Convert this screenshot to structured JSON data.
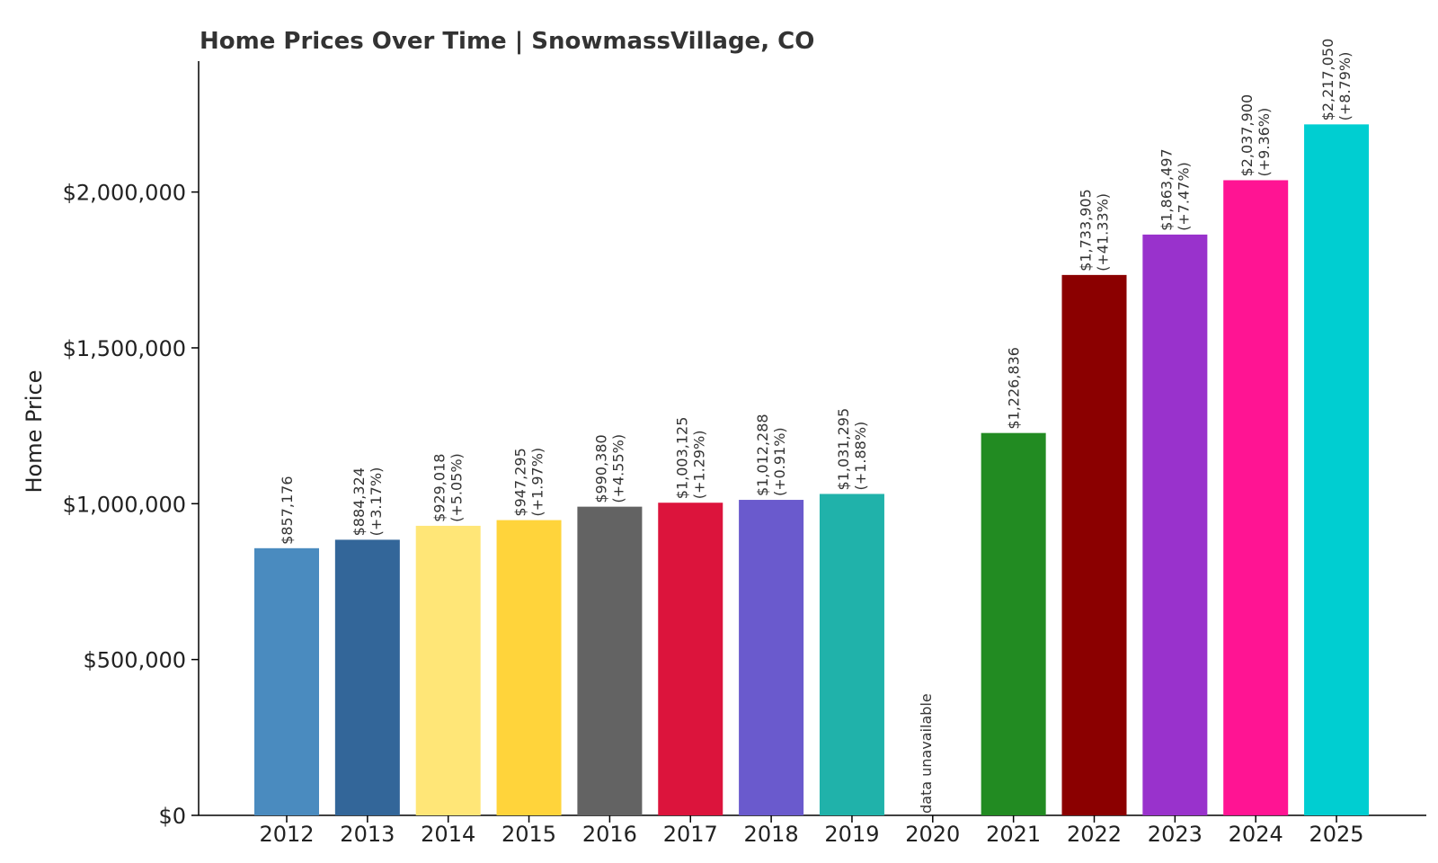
{
  "chart_data": {
    "type": "bar",
    "title": "Home Prices Over Time | SnowmassVillage, CO",
    "xlabel": "",
    "ylabel": "Home Price",
    "ylim": [
      0,
      2420000
    ],
    "yticks": [
      0,
      500000,
      1000000,
      1500000,
      2000000
    ],
    "ytick_labels": [
      "$0",
      "$500,000",
      "$1,000,000",
      "$1,500,000",
      "$2,000,000"
    ],
    "grid": false,
    "categories": [
      "2012",
      "2013",
      "2014",
      "2015",
      "2016",
      "2017",
      "2018",
      "2019",
      "2020",
      "2021",
      "2022",
      "2023",
      "2024",
      "2025"
    ],
    "values": [
      857176,
      884324,
      929018,
      947295,
      990380,
      1003125,
      1012288,
      1031295,
      null,
      1226836,
      1733905,
      1863497,
      2037900,
      2217050
    ],
    "value_labels": [
      "$857,176",
      "$884,324",
      "$929,018",
      "$947,295",
      "$990,380",
      "$1,003,125",
      "$1,012,288",
      "$1,031,295",
      "data unavailable",
      "$1,226,836",
      "$1,733,905",
      "$1,863,497",
      "$2,037,900",
      "$2,217,050"
    ],
    "change_labels": [
      "",
      "(+3.17%)",
      "(+5.05%)",
      "(+1.97%)",
      "(+4.55%)",
      "(+1.29%)",
      "(+0.91%)",
      "(+1.88%)",
      "",
      "",
      "(+41.33%)",
      "(+7.47%)",
      "(+9.36%)",
      "(+8.79%)"
    ],
    "colors": [
      "#4a8bbf",
      "#336699",
      "#ffe677",
      "#ffd43b",
      "#636363",
      "#dc143c",
      "#6a5acd",
      "#20b2aa",
      "#ffffff",
      "#228b22",
      "#8b0000",
      "#9932cc",
      "#ff1493",
      "#00ced1"
    ]
  }
}
